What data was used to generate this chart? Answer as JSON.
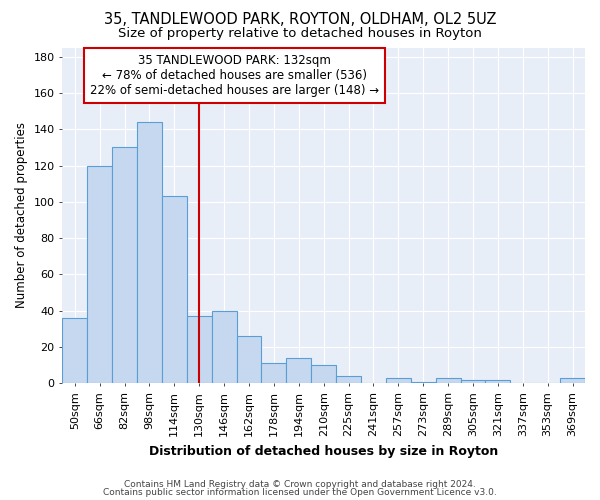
{
  "title1": "35, TANDLEWOOD PARK, ROYTON, OLDHAM, OL2 5UZ",
  "title2": "Size of property relative to detached houses in Royton",
  "xlabel": "Distribution of detached houses by size in Royton",
  "ylabel": "Number of detached properties",
  "categories": [
    "50sqm",
    "66sqm",
    "82sqm",
    "98sqm",
    "114sqm",
    "130sqm",
    "146sqm",
    "162sqm",
    "178sqm",
    "194sqm",
    "210sqm",
    "225sqm",
    "241sqm",
    "257sqm",
    "273sqm",
    "289sqm",
    "305sqm",
    "321sqm",
    "337sqm",
    "353sqm",
    "369sqm"
  ],
  "values": [
    36,
    120,
    130,
    144,
    103,
    37,
    40,
    26,
    11,
    14,
    10,
    4,
    0,
    3,
    1,
    3,
    2,
    2,
    0,
    0,
    3
  ],
  "bar_color": "#c5d8f0",
  "bar_edge_color": "#5a9fd4",
  "vline_x_index": 5,
  "vline_color": "#cc0000",
  "annotation_lines": [
    "35 TANDLEWOOD PARK: 132sqm",
    "← 78% of detached houses are smaller (536)",
    "22% of semi-detached houses are larger (148) →"
  ],
  "annotation_box_color": "#ffffff",
  "annotation_box_edge_color": "#cc0000",
  "ylim": [
    0,
    185
  ],
  "yticks": [
    0,
    20,
    40,
    60,
    80,
    100,
    120,
    140,
    160,
    180
  ],
  "bg_color": "#e8eef8",
  "footer1": "Contains HM Land Registry data © Crown copyright and database right 2024.",
  "footer2": "Contains public sector information licensed under the Open Government Licence v3.0.",
  "title1_fontsize": 10.5,
  "title2_fontsize": 9.5,
  "tick_fontsize": 8,
  "ylabel_fontsize": 8.5,
  "xlabel_fontsize": 9,
  "ann_fontsize": 8.5
}
